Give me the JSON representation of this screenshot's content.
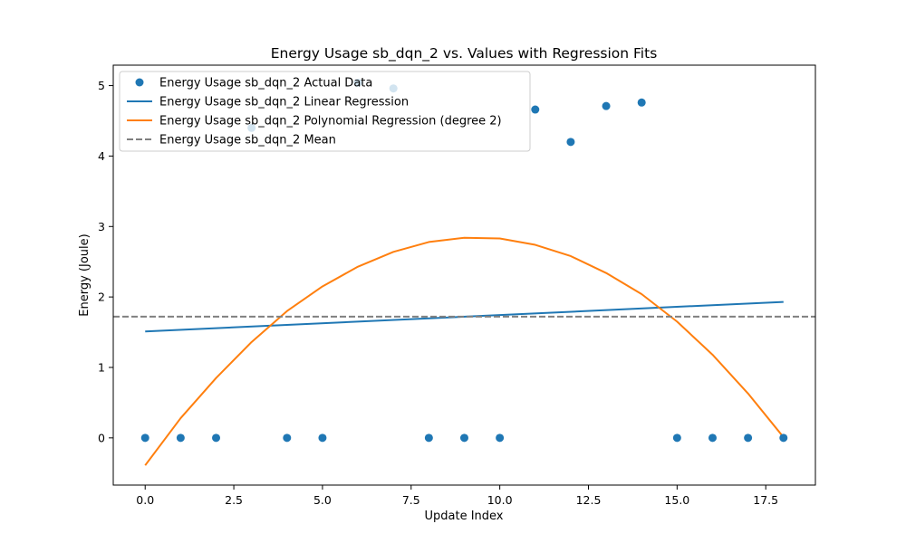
{
  "chart_data": {
    "type": "scatter",
    "title": "Energy Usage sb_dqn_2 vs. Values with Regression Fits",
    "xlabel": "Update Index",
    "ylabel": "Energy (Joule)",
    "xlim": [
      -0.9,
      18.9
    ],
    "ylim": [
      -0.67,
      5.29
    ],
    "x_ticks": [
      0.0,
      2.5,
      5.0,
      7.5,
      10.0,
      12.5,
      15.0,
      17.5
    ],
    "x_tick_labels": [
      "0.0",
      "2.5",
      "5.0",
      "7.5",
      "10.0",
      "12.5",
      "15.0",
      "17.5"
    ],
    "y_ticks": [
      0,
      1,
      2,
      3,
      4,
      5
    ],
    "y_tick_labels": [
      "0",
      "1",
      "2",
      "3",
      "4",
      "5"
    ],
    "grid": false,
    "legend_position": "top-left",
    "series": [
      {
        "name": "Energy Usage sb_dqn_2 Actual Data",
        "kind": "scatter",
        "color": "#1f77b4",
        "x": [
          0,
          1,
          2,
          3,
          4,
          5,
          6,
          7,
          8,
          9,
          10,
          11,
          12,
          13,
          14,
          15,
          16,
          17,
          18
        ],
        "values": [
          0,
          0,
          0,
          4.4,
          0,
          0,
          5.04,
          4.96,
          0,
          0,
          0,
          4.66,
          4.2,
          4.71,
          4.76,
          0,
          0,
          0,
          0
        ]
      },
      {
        "name": "Energy Usage sb_dqn_2 Linear Regression",
        "kind": "line",
        "color": "#1f77b4",
        "dash": "solid",
        "x": [
          0,
          18
        ],
        "values": [
          1.51,
          1.93
        ]
      },
      {
        "name": "Energy Usage sb_dqn_2 Polynomial Regression (degree 2)",
        "kind": "line",
        "color": "#ff7f0e",
        "dash": "solid",
        "x": [
          0,
          1,
          2,
          3,
          4,
          5,
          6,
          7,
          8,
          9,
          10,
          11,
          12,
          13,
          14,
          15,
          16,
          17,
          18
        ],
        "values": [
          -0.39,
          0.28,
          0.85,
          1.36,
          1.8,
          2.15,
          2.43,
          2.64,
          2.78,
          2.84,
          2.83,
          2.74,
          2.58,
          2.34,
          2.04,
          1.65,
          1.18,
          0.63,
          0.01
        ]
      },
      {
        "name": "Energy Usage sb_dqn_2 Mean",
        "kind": "hline",
        "color": "#808080",
        "dash": "dashed",
        "values": [
          1.72
        ]
      }
    ]
  }
}
